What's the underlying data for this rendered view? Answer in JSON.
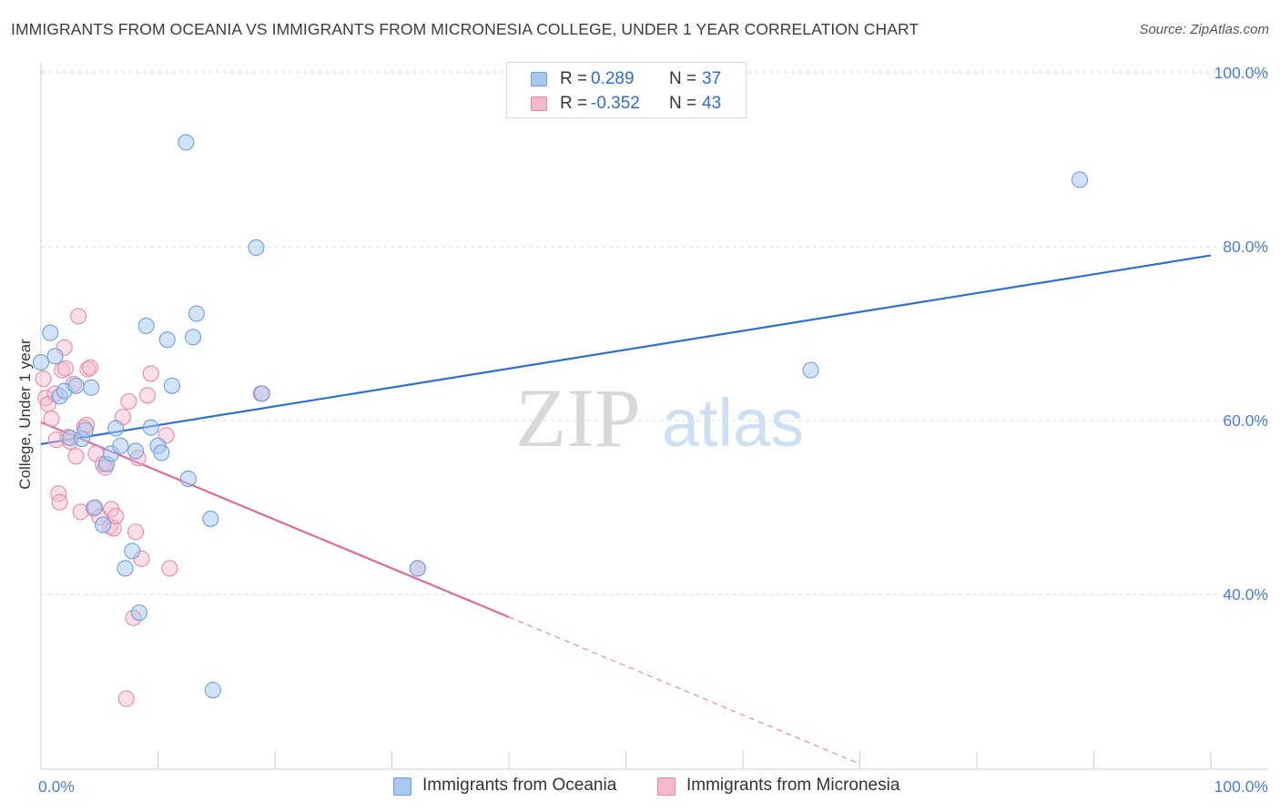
{
  "header": {
    "title": "IMMIGRANTS FROM OCEANIA VS IMMIGRANTS FROM MICRONESIA COLLEGE, UNDER 1 YEAR CORRELATION CHART",
    "source": "Source: ZipAtlas.com"
  },
  "watermark": {
    "zip": "ZIP",
    "atlas": "atlas"
  },
  "legend": {
    "rows": [
      {
        "r_label": "R =",
        "r_value": "0.289",
        "n_label": "N =",
        "n_value": "37"
      },
      {
        "r_label": "R =",
        "r_value": "-0.352",
        "n_label": "N =",
        "n_value": "43"
      }
    ]
  },
  "bottom_legend": {
    "series1": "Immigrants from Oceania",
    "series2": "Immigrants from Micronesia"
  },
  "colors": {
    "oceania_fill": "#a8c8f0",
    "oceania_stroke": "#6f9fd8",
    "oceania_line": "#2f6fd0",
    "micronesia_fill": "#f6b8cc",
    "micronesia_stroke": "#e68aa8",
    "micronesia_line": "#e06a98",
    "grid": "#dcdcdc",
    "tick_text": "#4a7fd0"
  },
  "chart_data": {
    "type": "scatter",
    "title": "IMMIGRANTS FROM OCEANIA VS IMMIGRANTS FROM MICRONESIA COLLEGE, UNDER 1 YEAR CORRELATION CHART",
    "xlabel": "",
    "ylabel": "College, Under 1 year",
    "xlim": [
      0,
      100
    ],
    "ylim": [
      20,
      102
    ],
    "x_tick_labels": [
      {
        "value": 0,
        "label": "0.0%"
      },
      {
        "value": 100,
        "label": "100.0%"
      }
    ],
    "y_tick_labels": [
      {
        "value": 40,
        "label": "40.0%"
      },
      {
        "value": 60,
        "label": "60.0%"
      },
      {
        "value": 80,
        "label": "80.0%"
      },
      {
        "value": 100,
        "label": "100.0%"
      }
    ],
    "gridlines_y": [
      40,
      60,
      80,
      100
    ],
    "series": [
      {
        "name": "Immigrants from Oceania",
        "r": 0.289,
        "n": 37,
        "trend": {
          "x": [
            0,
            100
          ],
          "y": [
            57.3,
            79.0
          ],
          "style": "solid"
        },
        "points": [
          [
            0,
            66.7
          ],
          [
            0.8,
            70.1
          ],
          [
            1.2,
            67.4
          ],
          [
            1.6,
            62.8
          ],
          [
            2.0,
            63.4
          ],
          [
            2.5,
            58.0
          ],
          [
            3.0,
            64.0
          ],
          [
            3.5,
            57.9
          ],
          [
            3.8,
            58.9
          ],
          [
            4.3,
            63.8
          ],
          [
            4.6,
            50.0
          ],
          [
            5.3,
            48.0
          ],
          [
            5.6,
            55.0
          ],
          [
            6.0,
            56.2
          ],
          [
            6.4,
            59.1
          ],
          [
            6.8,
            57.1
          ],
          [
            7.2,
            43.0
          ],
          [
            7.8,
            45.0
          ],
          [
            8.1,
            56.5
          ],
          [
            8.4,
            37.9
          ],
          [
            9.0,
            70.9
          ],
          [
            9.4,
            59.2
          ],
          [
            10.0,
            57.1
          ],
          [
            10.3,
            56.3
          ],
          [
            10.8,
            69.3
          ],
          [
            11.2,
            64.0
          ],
          [
            12.4,
            92.0
          ],
          [
            12.6,
            53.3
          ],
          [
            13.0,
            69.6
          ],
          [
            13.3,
            72.3
          ],
          [
            14.5,
            48.7
          ],
          [
            14.7,
            29.0
          ],
          [
            18.4,
            79.9
          ],
          [
            18.9,
            63.1
          ],
          [
            65.8,
            65.8
          ],
          [
            88.8,
            87.7
          ],
          [
            32.2,
            43.0
          ]
        ]
      },
      {
        "name": "Immigrants from Micronesia",
        "r": -0.352,
        "n": 43,
        "trend": {
          "x": [
            0,
            40
          ],
          "y": [
            59.8,
            37.4
          ],
          "dashed_to": {
            "x": 70,
            "y": 20.5
          }
        },
        "points": [
          [
            0.2,
            64.8
          ],
          [
            0.4,
            62.6
          ],
          [
            0.6,
            61.9
          ],
          [
            0.9,
            60.2
          ],
          [
            1.2,
            63.1
          ],
          [
            1.3,
            57.8
          ],
          [
            1.5,
            51.6
          ],
          [
            1.6,
            50.6
          ],
          [
            1.8,
            65.8
          ],
          [
            2.0,
            68.4
          ],
          [
            2.1,
            66.0
          ],
          [
            2.3,
            58.1
          ],
          [
            2.5,
            57.6
          ],
          [
            2.8,
            64.2
          ],
          [
            3.0,
            55.9
          ],
          [
            3.2,
            72.0
          ],
          [
            3.4,
            49.5
          ],
          [
            3.7,
            59.2
          ],
          [
            3.9,
            59.5
          ],
          [
            4.0,
            65.9
          ],
          [
            4.2,
            66.1
          ],
          [
            4.5,
            49.9
          ],
          [
            4.7,
            56.2
          ],
          [
            5.0,
            48.9
          ],
          [
            5.3,
            55.0
          ],
          [
            5.5,
            54.6
          ],
          [
            5.9,
            47.8
          ],
          [
            6.0,
            49.8
          ],
          [
            6.2,
            47.6
          ],
          [
            6.4,
            49.0
          ],
          [
            7.0,
            60.4
          ],
          [
            7.3,
            28.0
          ],
          [
            7.5,
            62.2
          ],
          [
            7.9,
            37.3
          ],
          [
            8.1,
            47.2
          ],
          [
            8.3,
            55.7
          ],
          [
            8.6,
            44.1
          ],
          [
            9.1,
            62.9
          ],
          [
            9.4,
            65.4
          ],
          [
            10.7,
            58.3
          ],
          [
            11.0,
            43.0
          ],
          [
            18.8,
            63.1
          ],
          [
            32.2,
            43.0
          ]
        ]
      }
    ]
  }
}
